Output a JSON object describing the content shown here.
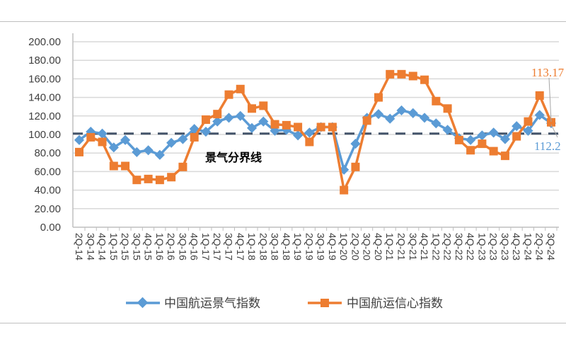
{
  "chart_data": {
    "type": "line",
    "title": "",
    "xlabel": "",
    "ylabel": "",
    "ylim": [
      0,
      200
    ],
    "yticks": [
      "0.00",
      "20.00",
      "40.00",
      "60.00",
      "80.00",
      "100.00",
      "120.00",
      "140.00",
      "160.00",
      "180.00",
      "200.00"
    ],
    "grid": true,
    "legend": "bottom",
    "categories": [
      "2Q-14",
      "3Q-14",
      "4Q-14",
      "1Q-15",
      "2Q-15",
      "3Q-15",
      "4Q-15",
      "1Q-16",
      "2Q-16",
      "3Q-16",
      "4Q-16",
      "1Q-17",
      "2Q-17",
      "3Q-17",
      "4Q-17",
      "1Q-18",
      "2Q-18",
      "3Q-18",
      "4Q-18",
      "1Q-19",
      "2Q-19",
      "3Q-19",
      "4Q-19",
      "1Q-20",
      "2Q-20",
      "3Q-20",
      "4Q-20",
      "1Q-21",
      "2Q-21",
      "3Q-21",
      "4Q-21",
      "1Q-22",
      "2Q-22",
      "3Q-22",
      "4Q-22",
      "1Q-23",
      "2Q-23",
      "3Q-23",
      "4Q-23",
      "1Q-24",
      "2Q-24",
      "3Q-24"
    ],
    "series": [
      {
        "name": "中国航运景气指数",
        "color": "#5b9bd5",
        "marker": "diamond",
        "values": [
          94,
          103,
          101,
          86,
          94,
          81,
          83,
          78,
          91,
          95,
          106,
          103,
          114,
          118,
          120,
          107,
          114,
          104,
          105,
          99,
          102,
          108,
          108,
          62,
          90,
          118,
          122,
          117,
          126,
          123,
          118,
          112,
          105,
          96,
          94,
          99,
          102,
          95,
          109,
          104,
          121,
          112.2
        ]
      },
      {
        "name": "中国航运信心指数",
        "color": "#ed7d31",
        "marker": "square",
        "values": [
          81,
          97,
          92,
          66,
          66,
          51,
          52,
          51,
          54,
          65,
          97,
          116,
          122,
          143,
          149,
          128,
          131,
          111,
          110,
          108,
          92,
          108,
          108,
          40,
          65,
          115,
          140,
          165,
          165,
          163,
          159,
          136,
          128,
          94,
          83,
          90,
          82,
          77,
          98,
          114,
          142,
          113.17
        ]
      }
    ],
    "reference_line": {
      "value": 101,
      "label": "景气分界线",
      "color": "#44546a"
    },
    "annotations": [
      {
        "text": "113.17",
        "series": "中国航运信心指数",
        "color": "#ed7d31"
      },
      {
        "text": "112.2",
        "series": "中国航运景气指数",
        "color": "#5b9bd5"
      }
    ]
  }
}
